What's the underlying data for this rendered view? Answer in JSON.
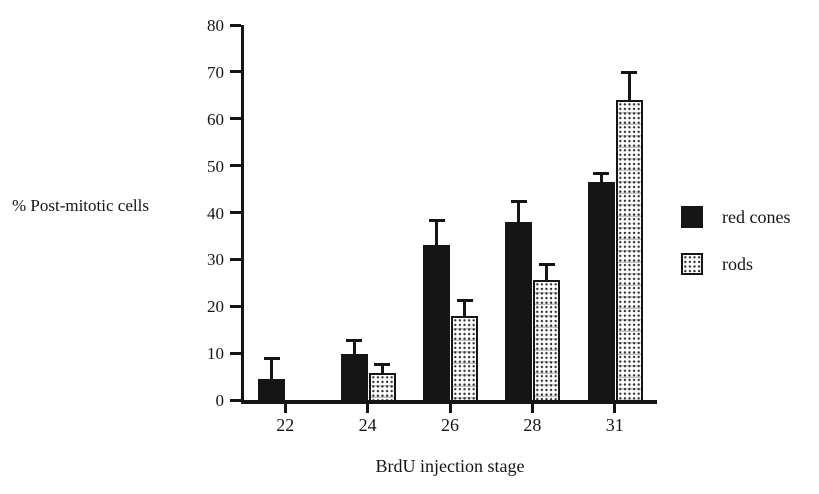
{
  "figure": {
    "background_color": "#ffffff",
    "ink_color": "#151515"
  },
  "chart_data": {
    "type": "bar",
    "title": "",
    "xlabel": "BrdU injection stage",
    "ylabel": "% Post-mitotic cells",
    "categories": [
      "22",
      "24",
      "26",
      "28",
      "31"
    ],
    "series": [
      {
        "name": "red cones",
        "style": "solid",
        "values": [
          4.5,
          9.8,
          33,
          38,
          46.5
        ],
        "error_up": [
          4.5,
          3,
          5.5,
          4.5,
          2
        ]
      },
      {
        "name": "rods",
        "style": "stipple",
        "values": [
          0,
          5.7,
          18,
          25.5,
          64
        ],
        "error_up": [
          0,
          2,
          3.4,
          3.5,
          6
        ]
      }
    ],
    "ylim": [
      0,
      80
    ],
    "yticks": [
      0,
      10,
      20,
      30,
      40,
      50,
      60,
      70,
      80
    ],
    "grid": false,
    "error_bars": "upper-only",
    "legend": {
      "position": "right",
      "entries": [
        "red cones",
        "rods"
      ]
    }
  }
}
